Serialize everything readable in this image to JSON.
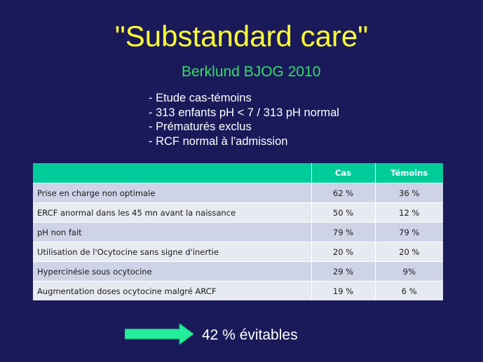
{
  "slide": {
    "title": "\"Substandard care\"",
    "subtitle": "Berklund BJOG 2010",
    "bullets": [
      "- Etude cas-témoins",
      "- 313 enfants pH < 7 / 313 pH normal",
      "- Prématurés exclus",
      "- RCF normal à l'admission"
    ],
    "conclusion": "42 % évitables",
    "arrow_icon": "right-arrow-icon"
  },
  "colors": {
    "background": "#1a1a5a",
    "title": "#ffff33",
    "subtitle": "#33dd66",
    "table_header": "#00cc99",
    "arrow": "#22ee99"
  },
  "table": {
    "headers": [
      "",
      "Cas",
      "Témoins"
    ],
    "rows": [
      [
        "Prise en charge non optimale",
        "62 %",
        "36 %"
      ],
      [
        "ERCF anormal dans les 45 mn avant la naissance",
        "50 %",
        "12 %"
      ],
      [
        "pH non fait",
        "79 %",
        "79 %"
      ],
      [
        "Utilisation de l'Ocytocine sans signe d'inertie",
        "20 %",
        "20 %"
      ],
      [
        "Hypercinésie sous ocytocine",
        "29 %",
        "9%"
      ],
      [
        "Augmentation doses ocytocine malgré ARCF",
        "19 %",
        "6 %"
      ]
    ]
  }
}
